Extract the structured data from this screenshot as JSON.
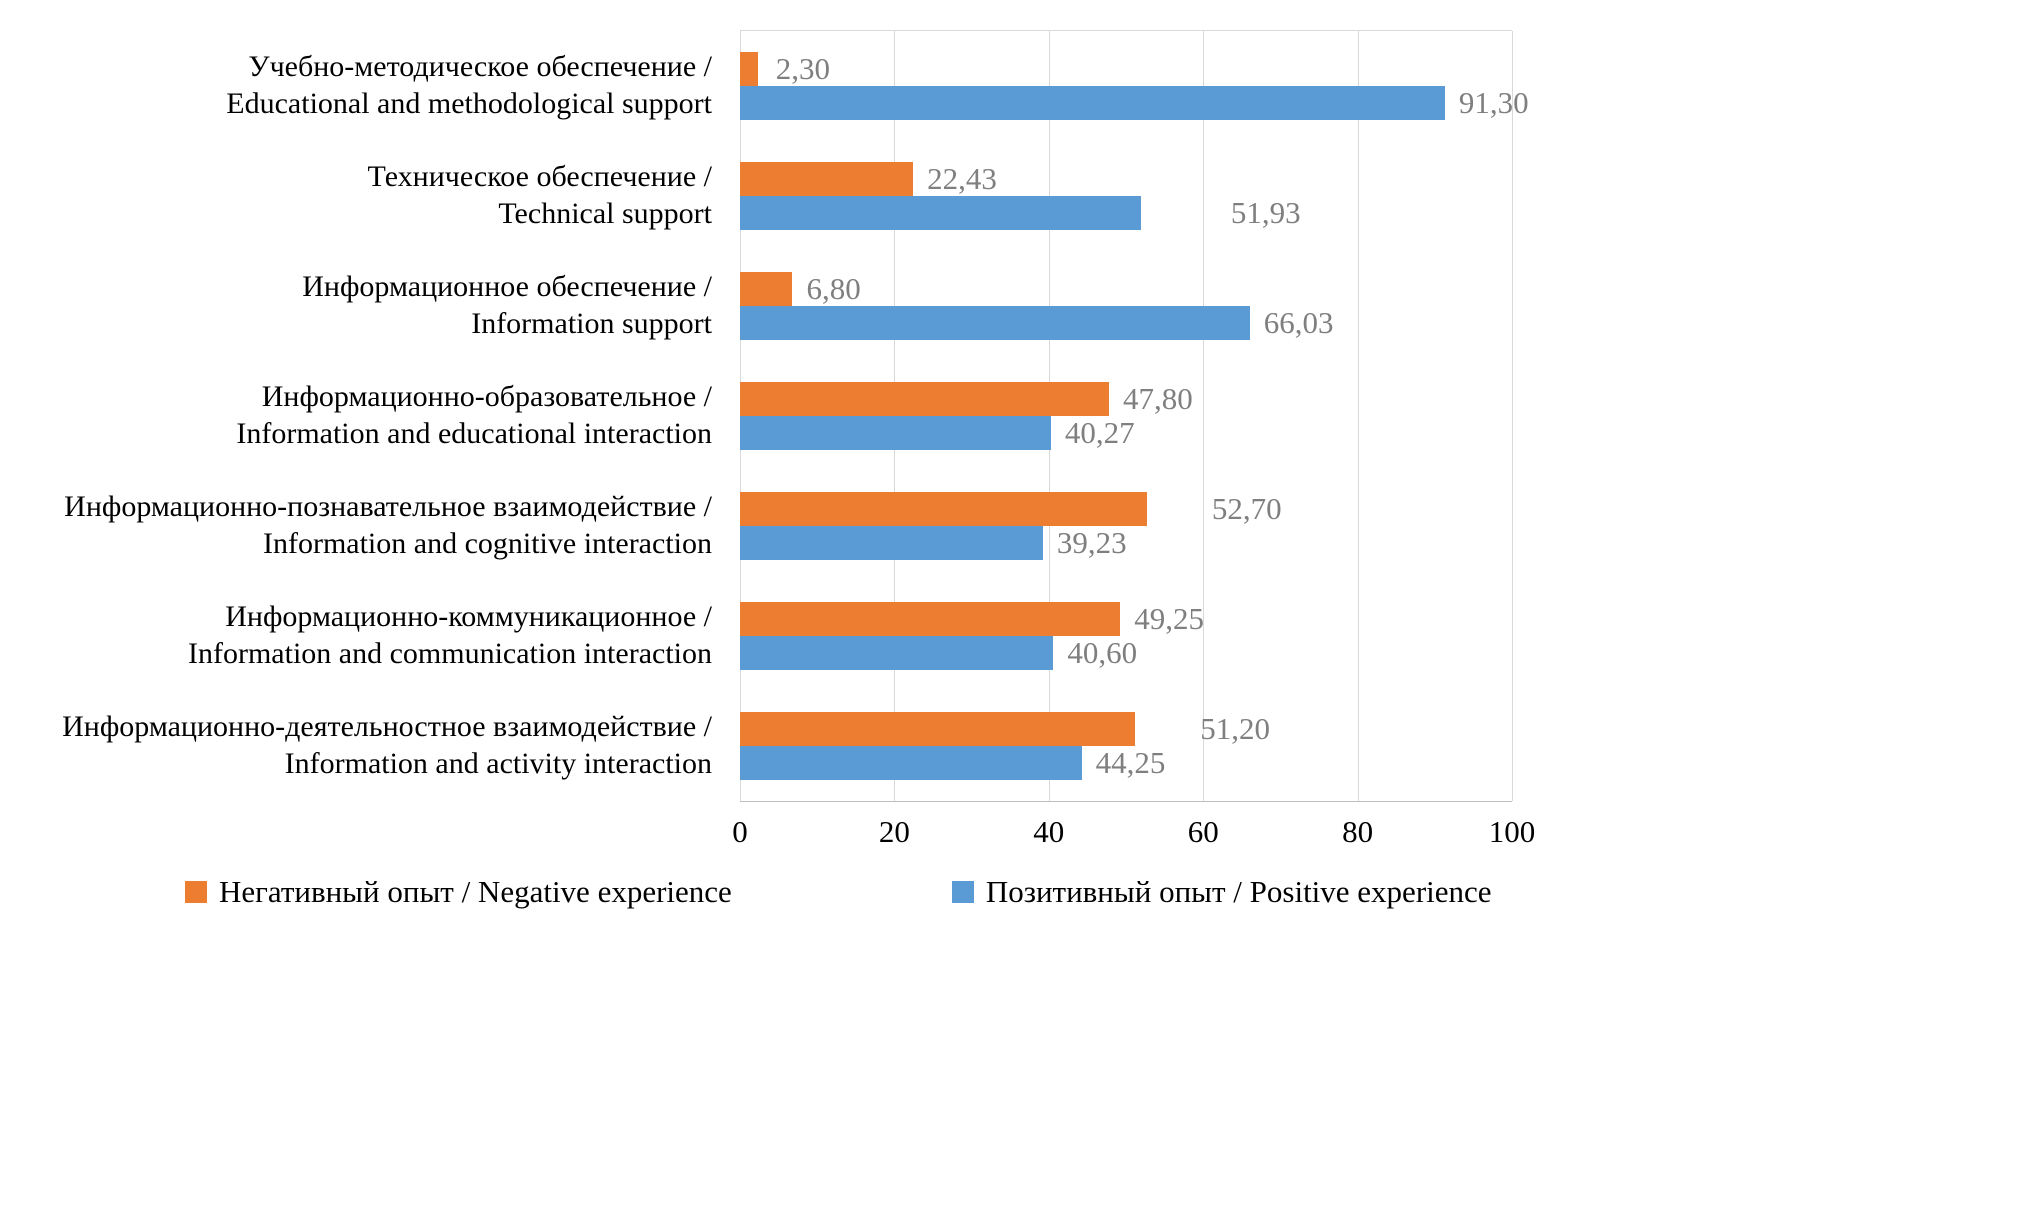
{
  "chart_data": {
    "type": "bar",
    "orientation": "horizontal",
    "title": "",
    "xlabel": "",
    "ylabel": "",
    "xlim": [
      0,
      100
    ],
    "x_ticks": [
      0,
      20,
      40,
      60,
      80,
      100
    ],
    "grid": "vertical",
    "legend_position": "bottom",
    "data_label_color": "#7F7F7F",
    "gridline_color": "#D9D9D9",
    "categories": [
      [
        "Учебно-методическое обеспечение /",
        "Educational and methodological support"
      ],
      [
        "Техническое обеспечение /",
        "Technical support"
      ],
      [
        "Информационное обеспечение /",
        "Information support"
      ],
      [
        "Информационно-образовательное /",
        "Information and educational interaction"
      ],
      [
        "Информационно-познавательное взаимодействие /",
        "Information and cognitive interaction"
      ],
      [
        "Информационно-коммуникационное /",
        "Information and communication interaction"
      ],
      [
        "Информационно-деятельностное взаимодействие /",
        "Information and activity interaction"
      ]
    ],
    "series": [
      {
        "name": "Негативный опыт / Negative experience",
        "color": "#ED7D31",
        "values": [
          2.3,
          22.43,
          6.8,
          47.8,
          52.7,
          49.25,
          51.2
        ],
        "labels": [
          "2,30",
          "22,43",
          "6,80",
          "47,80",
          "52,70",
          "49,25",
          "51,20"
        ],
        "label_dx": [
          8,
          4,
          4,
          4,
          55,
          4,
          55
        ]
      },
      {
        "name": "Позитивный опыт / Positive experience",
        "color": "#5B9BD5",
        "values": [
          91.3,
          51.93,
          66.03,
          40.27,
          39.23,
          40.6,
          44.25
        ],
        "labels": [
          "91,30",
          "51,93",
          "66,03",
          "40,27",
          "39,23",
          "40,60",
          "44,25"
        ],
        "label_dx": [
          4,
          80,
          4,
          4,
          4,
          4,
          4
        ]
      }
    ]
  }
}
